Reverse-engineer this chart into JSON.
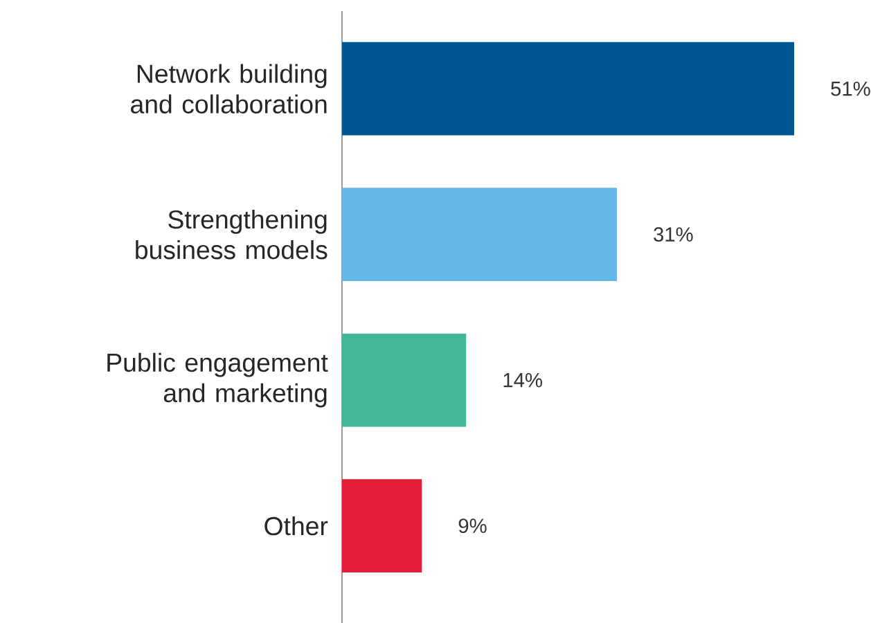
{
  "chart_data": {
    "type": "bar",
    "orientation": "horizontal",
    "categories": [
      "Network building and collaboration",
      "Strengthening business models",
      "Public engagement and marketing",
      "Other"
    ],
    "values": [
      51,
      31,
      14,
      9
    ],
    "value_labels": [
      "51%",
      "31%",
      "14%",
      "9%"
    ],
    "colors": [
      "#005792",
      "#63b8e8",
      "#44b69a",
      "#e31c37"
    ]
  }
}
